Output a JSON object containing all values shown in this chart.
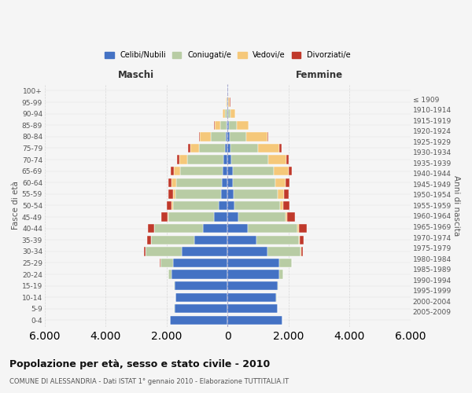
{
  "age_groups": [
    "0-4",
    "5-9",
    "10-14",
    "15-19",
    "20-24",
    "25-29",
    "30-34",
    "35-39",
    "40-44",
    "45-49",
    "50-54",
    "55-59",
    "60-64",
    "65-69",
    "70-74",
    "75-79",
    "80-84",
    "85-89",
    "90-94",
    "95-99",
    "100+"
  ],
  "birth_years": [
    "2005-2009",
    "2000-2004",
    "1995-1999",
    "1990-1994",
    "1985-1989",
    "1980-1984",
    "1975-1979",
    "1970-1974",
    "1965-1969",
    "1960-1964",
    "1955-1959",
    "1950-1954",
    "1945-1949",
    "1940-1944",
    "1935-1939",
    "1930-1934",
    "1925-1929",
    "1920-1924",
    "1915-1919",
    "1910-1914",
    "≤ 1909"
  ],
  "colors": {
    "celibi": "#4472c4",
    "coniugati": "#b8cca4",
    "vedovi": "#f5c87a",
    "divorziati": "#c0392b"
  },
  "males": {
    "celibi": [
      1900,
      1750,
      1700,
      1750,
      1850,
      1800,
      1500,
      1100,
      800,
      450,
      280,
      220,
      180,
      160,
      130,
      80,
      60,
      30,
      20,
      10,
      5
    ],
    "coniugati": [
      5,
      5,
      5,
      20,
      100,
      400,
      1200,
      1400,
      1600,
      1500,
      1500,
      1500,
      1500,
      1400,
      1200,
      850,
      500,
      200,
      60,
      20,
      5
    ],
    "vedovi": [
      0,
      0,
      0,
      0,
      0,
      5,
      5,
      10,
      20,
      30,
      50,
      80,
      150,
      200,
      250,
      300,
      350,
      200,
      80,
      30,
      5
    ],
    "divorziati": [
      0,
      0,
      0,
      0,
      0,
      10,
      50,
      120,
      200,
      200,
      160,
      150,
      120,
      100,
      80,
      60,
      30,
      10,
      10,
      5,
      2
    ]
  },
  "females": {
    "nubili": [
      1800,
      1650,
      1600,
      1650,
      1700,
      1700,
      1300,
      950,
      650,
      350,
      220,
      200,
      160,
      160,
      130,
      100,
      60,
      40,
      20,
      10,
      5
    ],
    "coniugate": [
      5,
      5,
      5,
      25,
      130,
      400,
      1100,
      1400,
      1650,
      1550,
      1500,
      1450,
      1400,
      1350,
      1200,
      900,
      550,
      250,
      80,
      20,
      5
    ],
    "vedove": [
      0,
      0,
      0,
      0,
      0,
      5,
      10,
      20,
      35,
      60,
      100,
      200,
      350,
      500,
      600,
      700,
      700,
      400,
      150,
      50,
      10
    ],
    "divorziate": [
      0,
      0,
      0,
      0,
      0,
      10,
      50,
      130,
      250,
      250,
      200,
      150,
      120,
      100,
      80,
      60,
      30,
      10,
      10,
      5,
      2
    ]
  },
  "title": "Popolazione per età, sesso e stato civile - 2010",
  "subtitle": "COMUNE DI ALESSANDRIA - Dati ISTAT 1° gennaio 2010 - Elaborazione TUTTITALIA.IT",
  "xlabel_left": "Maschi",
  "xlabel_right": "Femmine",
  "ylabel_left": "Fasce di età",
  "ylabel_right": "Anni di nascita",
  "xlim": 6000,
  "bg_color": "#f5f5f5",
  "grid_color": "#cccccc"
}
